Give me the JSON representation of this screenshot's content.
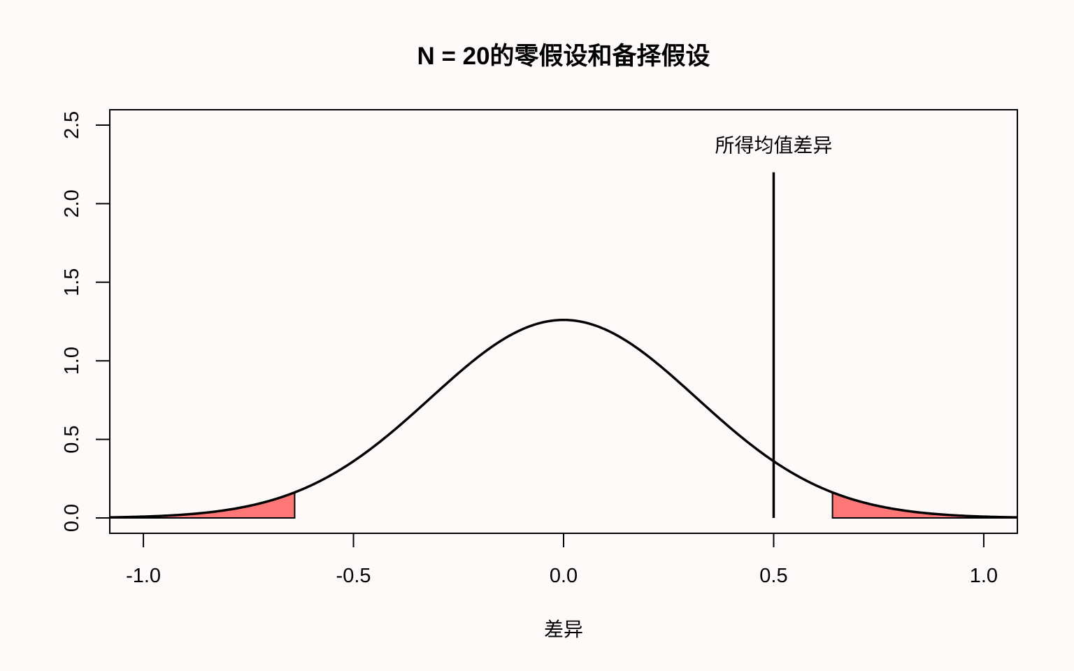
{
  "chart_data": {
    "type": "line",
    "title": "N = 20的零假设和备择假设",
    "xlabel": "差异",
    "ylabel": "",
    "xlim": [
      -1.08,
      1.08
    ],
    "ylim": [
      0.0,
      2.6
    ],
    "x_ticks": [
      "-1.0",
      "-0.5",
      "0.0",
      "0.5",
      "1.0"
    ],
    "y_ticks": [
      "0.0",
      "0.5",
      "1.0",
      "1.5",
      "2.0",
      "2.5"
    ],
    "grid": false,
    "series": [
      {
        "distribution": "normal",
        "mean": 0.0,
        "sd": 0.3162,
        "peak_density": 1.26
      }
    ],
    "shaded_regions": [
      {
        "x": [
          -1.08,
          -0.64
        ],
        "color": "#ff7777"
      },
      {
        "x": [
          0.64,
          1.08
        ],
        "color": "#ff7777"
      }
    ],
    "vertical_line": {
      "x": 0.5,
      "y": [
        0.0,
        2.2
      ]
    },
    "annotation": {
      "text": "所得均值差异",
      "x": 0.5,
      "y": 2.35
    }
  }
}
